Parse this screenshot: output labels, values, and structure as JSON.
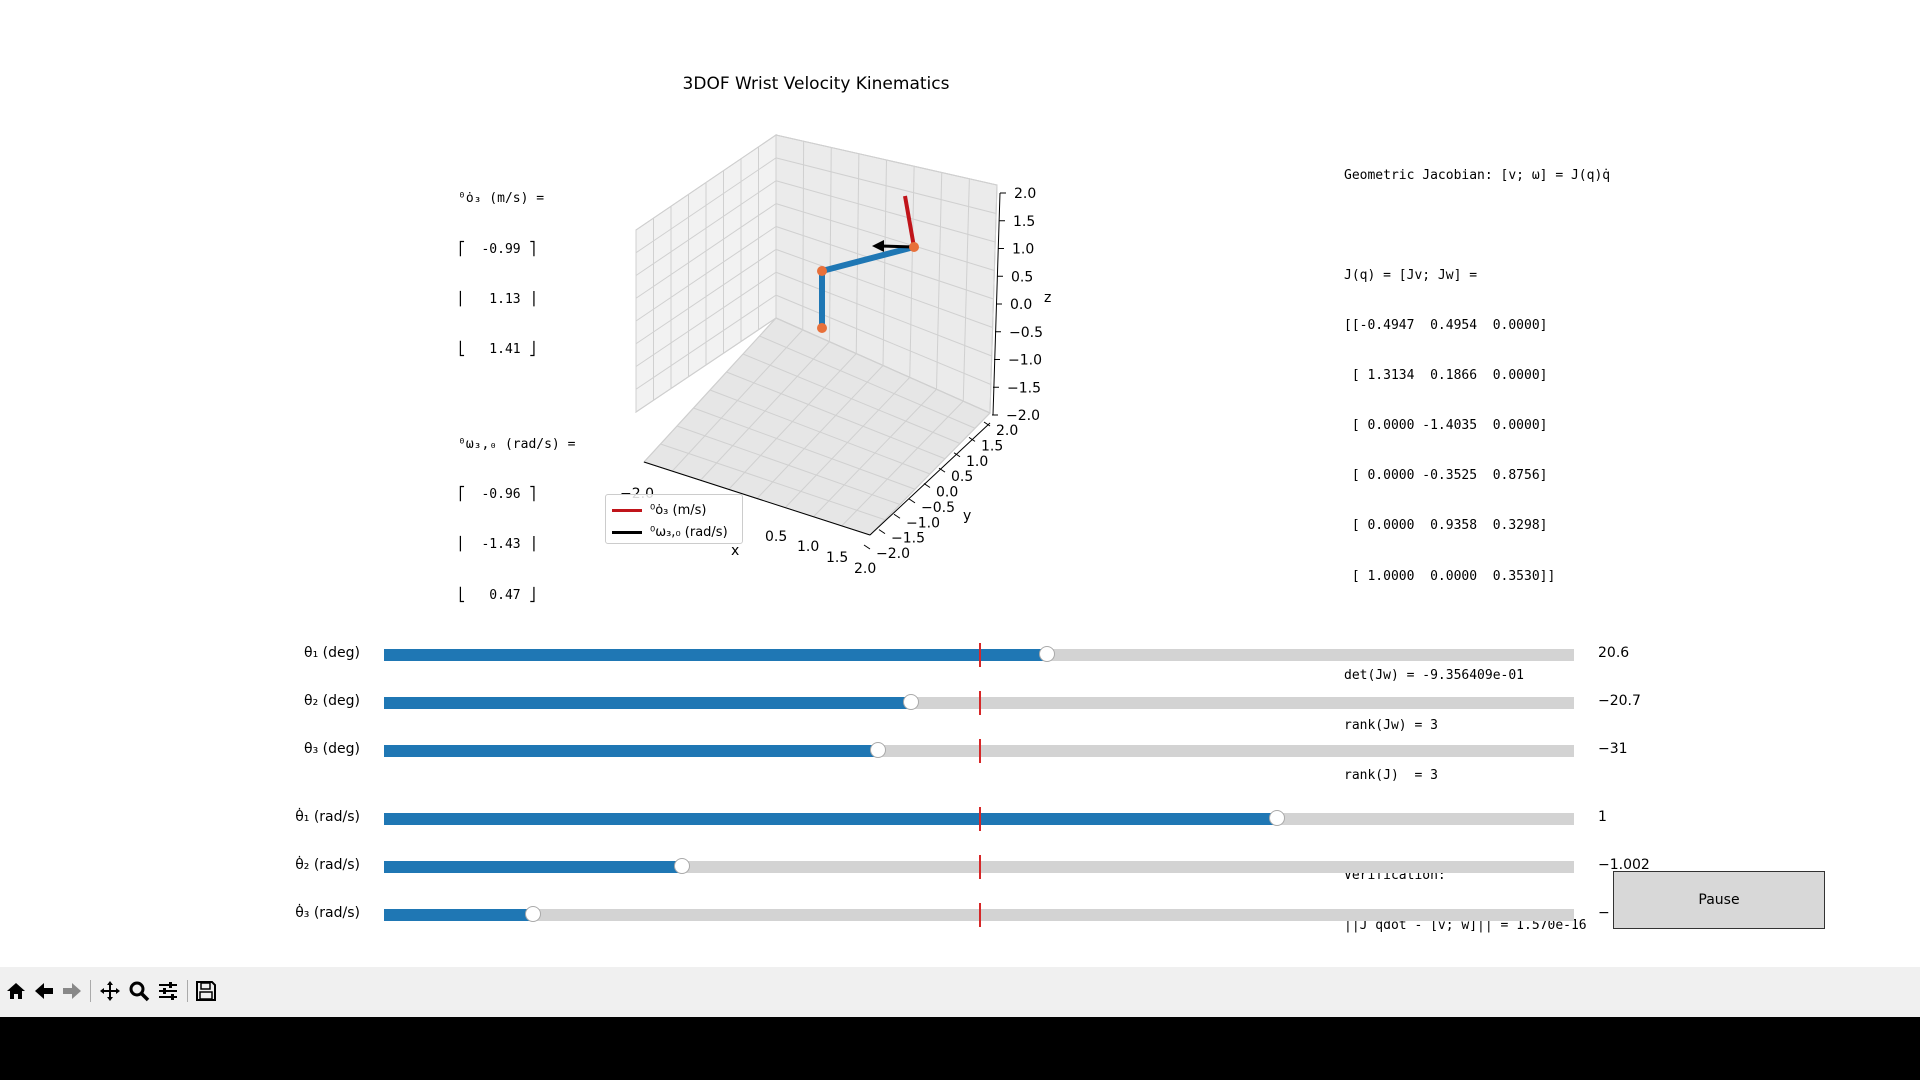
{
  "figure": {
    "title": "3DOF Wrist Velocity Kinematics"
  },
  "left_info": {
    "vel_title": "⁰ȯ₃ (m/s) =",
    "vel_rows": [
      "⎡  -0.99 ⎤",
      "⎢   1.13 ⎥",
      "⎣   1.41 ⎦"
    ],
    "omega_title": "⁰ω₃,₀ (rad/s) =",
    "omega_rows": [
      "⎡  -0.96 ⎤",
      "⎢  -1.43 ⎥",
      "⎣   0.47 ⎦"
    ]
  },
  "right_info": {
    "heading": "Geometric Jacobian: [v; ω] = J(q)q̇",
    "jq_label": "J(q) = [Jv; Jw] =",
    "matrix_rows": [
      "[[-0.4947  0.4954  0.0000]",
      " [ 1.3134  0.1866  0.0000]",
      " [ 0.0000 -1.4035  0.0000]",
      " [ 0.0000 -0.3525  0.8756]",
      " [ 0.0000  0.9358  0.3298]",
      " [ 1.0000  0.0000  0.3530]]"
    ],
    "det": "det(Jw) = -9.356409e-01",
    "rank_jw": "rank(Jw) = 3",
    "rank_j": "rank(J)  = 3",
    "verif_label": "Verification:",
    "verif_value": "||J qdot - [v; w]|| = 1.570e-16"
  },
  "plot3d": {
    "z_ticks": [
      "2.0",
      "1.5",
      "1.0",
      "0.5",
      "0.0",
      "−0.5",
      "−1.0",
      "−1.5",
      "−2.0"
    ],
    "y_ticks": [
      "2.0",
      "1.5",
      "1.0",
      "0.5",
      "0.0",
      "−0.5",
      "−1.0",
      "−1.5",
      "−2.0"
    ],
    "x_ticks": [
      "−2.0",
      "0.5",
      "1.0",
      "1.5",
      "2.0"
    ],
    "x_label": "x",
    "y_label": "y",
    "z_label": "z",
    "legend": [
      {
        "label": "⁰ȯ₃ (m/s)",
        "color": "#c0141a"
      },
      {
        "label": "⁰ω₃,₀ (rad/s)",
        "color": "#000000"
      }
    ],
    "link_color": "#1f77b4",
    "joint_color": "#e8703a"
  },
  "sliders": [
    {
      "label": "θ₁ (deg)",
      "value_text": "20.6",
      "fraction": 0.557
    },
    {
      "label": "θ₂ (deg)",
      "value_text": "−20.7",
      "fraction": 0.443
    },
    {
      "label": "θ₃ (deg)",
      "value_text": "−31",
      "fraction": 0.415
    },
    {
      "label": "θ̇₁ (rad/s)",
      "value_text": "1",
      "fraction": 0.75
    },
    {
      "label": "θ̇₂ (rad/s)",
      "value_text": "−1.002",
      "fraction": 0.25
    },
    {
      "label": "θ̇₃ (rad/s)",
      "value_text": "−",
      "fraction": 0.125
    }
  ],
  "pause_button": {
    "label": "Pause"
  },
  "toolbar": {
    "icons": [
      "home-icon",
      "back-icon",
      "forward-icon",
      "pan-icon",
      "zoom-icon",
      "configure-icon",
      "save-icon"
    ]
  }
}
